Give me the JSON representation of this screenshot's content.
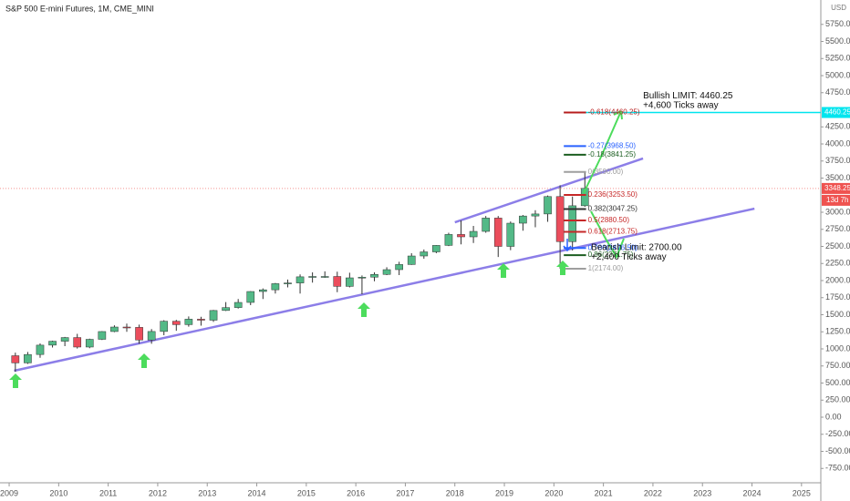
{
  "chart_data": {
    "type": "candlestick",
    "title": "S&P 500 E-mini Futures, 1M, CME_MINI",
    "currency": "USD",
    "x": [
      2009.125,
      2009.375,
      2009.625,
      2009.875,
      2010.125,
      2010.375,
      2010.625,
      2010.875,
      2011.125,
      2011.375,
      2011.625,
      2011.875,
      2012.125,
      2012.375,
      2012.625,
      2012.875,
      2013.125,
      2013.375,
      2013.625,
      2013.875,
      2014.125,
      2014.375,
      2014.625,
      2014.875,
      2015.125,
      2015.375,
      2015.625,
      2015.875,
      2016.125,
      2016.375,
      2016.625,
      2016.875,
      2017.125,
      2017.375,
      2017.625,
      2017.875,
      2018.125,
      2018.375,
      2018.625,
      2018.875,
      2019.125,
      2019.375,
      2019.625,
      2019.875,
      2020.125,
      2020.375,
      2020.625
    ],
    "open": [
      900,
      795,
      918,
      1055,
      1112,
      1166,
      1027,
      1140,
      1254,
      1320,
      1315,
      1130,
      1255,
      1405,
      1355,
      1435,
      1420,
      1562,
      1605,
      1680,
      1840,
      1865,
      1955,
      1965,
      2055,
      2060,
      2060,
      1915,
      2040,
      2050,
      2090,
      2160,
      2235,
      2360,
      2420,
      2515,
      2675,
      2640,
      2720,
      2915,
      2500,
      2840,
      2945,
      2975,
      3230,
      2570,
      3095
    ],
    "high": [
      945,
      955,
      1080,
      1120,
      1175,
      1220,
      1150,
      1260,
      1345,
      1370,
      1355,
      1290,
      1420,
      1425,
      1475,
      1470,
      1570,
      1685,
      1730,
      1845,
      1885,
      1965,
      2015,
      2090,
      2120,
      2135,
      2130,
      2115,
      2075,
      2120,
      2195,
      2275,
      2400,
      2455,
      2520,
      2700,
      2880,
      2800,
      2945,
      2945,
      2865,
      2960,
      3030,
      3245,
      3395,
      3230,
      3590
    ],
    "low": [
      665,
      780,
      870,
      1020,
      1040,
      1005,
      1010,
      1130,
      1245,
      1250,
      1075,
      1075,
      1200,
      1265,
      1325,
      1340,
      1395,
      1555,
      1590,
      1640,
      1730,
      1810,
      1900,
      1810,
      1970,
      2040,
      1830,
      1900,
      1800,
      1990,
      2080,
      2080,
      2230,
      2320,
      2400,
      2505,
      2530,
      2550,
      2700,
      2345,
      2445,
      2730,
      2780,
      2860,
      2175,
      2440,
      3080
    ],
    "close": [
      795,
      918,
      1055,
      1112,
      1166,
      1027,
      1140,
      1254,
      1320,
      1315,
      1130,
      1255,
      1405,
      1355,
      1435,
      1420,
      1562,
      1605,
      1680,
      1840,
      1865,
      1955,
      1965,
      2055,
      2060,
      2060,
      1915,
      2040,
      2050,
      2090,
      2160,
      2235,
      2360,
      2420,
      2515,
      2675,
      2640,
      2720,
      2915,
      2500,
      2840,
      2945,
      2975,
      3230,
      2570,
      3095,
      3350
    ],
    "up_color": "#53b987",
    "down_color": "#eb4d5c",
    "wick_color": "#333333",
    "xlim": [
      2008.815,
      2025.39
    ],
    "xticks": [
      2009,
      2010,
      2011,
      2012,
      2013,
      2014,
      2015,
      2016,
      2017,
      2018,
      2019,
      2020,
      2021,
      2022,
      2023,
      2024,
      2025
    ],
    "ylim": [
      -960,
      6107
    ],
    "yticks": [
      {
        "value": -750,
        "label": "-750.00"
      },
      {
        "value": -500,
        "label": "-500.00"
      },
      {
        "value": -250,
        "label": "-250.00"
      },
      {
        "value": 0,
        "label": "0.00"
      },
      {
        "value": 250,
        "label": "250.00"
      },
      {
        "value": 500,
        "label": "500.00"
      },
      {
        "value": 750,
        "label": "750.00"
      },
      {
        "value": 1000,
        "label": "1000.00"
      },
      {
        "value": 1250,
        "label": "1250.00"
      },
      {
        "value": 1500,
        "label": "1500.00"
      },
      {
        "value": 1750,
        "label": "1750.00"
      },
      {
        "value": 2000,
        "label": "2000.00"
      },
      {
        "value": 2250,
        "label": "2250.00"
      },
      {
        "value": 2500,
        "label": "2500.00"
      },
      {
        "value": 2750,
        "label": "2750.00"
      },
      {
        "value": 3000,
        "label": "3000.00"
      },
      {
        "value": 3500,
        "label": "3500.00"
      },
      {
        "value": 3750,
        "label": "3750.00"
      },
      {
        "value": 4000,
        "label": "4000.00"
      },
      {
        "value": 4250,
        "label": "4250.00"
      },
      {
        "value": 4750,
        "label": "4750.00"
      },
      {
        "value": 5000,
        "label": "5000.00"
      },
      {
        "value": 5250,
        "label": "5250.00"
      },
      {
        "value": 5500,
        "label": "5500.00"
      },
      {
        "value": 5750,
        "label": "5750.00"
      }
    ],
    "trendlines": [
      {
        "x": [
          2009.1,
          2024.05
        ],
        "y": [
          680,
          3053
        ],
        "color": "#8c7ee8"
      },
      {
        "x": [
          2018.0,
          2021.8
        ],
        "y": [
          2853,
          3787
        ],
        "color": "#8c7ee8"
      }
    ],
    "fib_x": [
      2020.2,
      2020.65
    ],
    "fib_levels": [
      {
        "label": "-0.618(4460.25)",
        "value": 4460.25,
        "color": "#b71c1c"
      },
      {
        "label": "-0.27(3968.50)",
        "value": 3968.5,
        "color": "#2962ff"
      },
      {
        "label": "-0.18(3841.25)",
        "value": 3841.25,
        "color": "#1b5e20"
      },
      {
        "label": "0(3590.00)",
        "value": 3590,
        "color": "#9e9e9e"
      },
      {
        "label": "0.236(3253.50)",
        "value": 3253.5,
        "color": "#c62828"
      },
      {
        "label": "0.382(3047.25)",
        "value": 3047.25,
        "color": "#333333"
      },
      {
        "label": "0.5(2880.50)",
        "value": 2880.5,
        "color": "#c62828"
      },
      {
        "label": "0.618(2713.75)",
        "value": 2713.75,
        "color": "#c62828"
      },
      {
        "label": "0.786(2476.50)",
        "value": 2476.5,
        "color": "#2962ff"
      },
      {
        "label": "0.86(2371.75)",
        "value": 2371.75,
        "color": "#1b5e20"
      },
      {
        "label": "1(2174.00)",
        "value": 2174,
        "color": "#9e9e9e"
      }
    ],
    "target_price": 4460.25,
    "target_color": "#00e5ee",
    "last_price": 3348.25,
    "last_color": "#ef5350",
    "countdown": "13d 7h",
    "annotations": [
      {
        "text": "Bullish LIMIT: 4460.25",
        "x": 2021.8,
        "y": 4700
      },
      {
        "text": "+4,600 Ticks away",
        "x": 2021.8,
        "y": 4560
      },
      {
        "text": "Bearish Limit: 2700.00",
        "x": 2020.75,
        "y": 2480
      },
      {
        "text": "+2,400 Ticks away",
        "x": 2020.75,
        "y": 2340
      }
    ]
  }
}
